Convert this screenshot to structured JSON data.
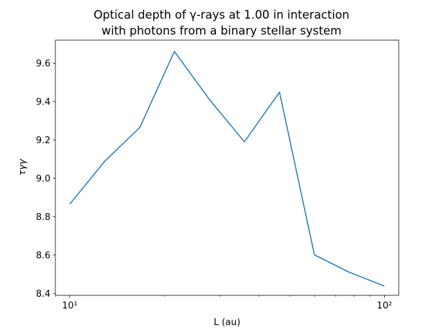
{
  "chart_data": {
    "type": "line",
    "title_lines": [
      "Optical depth of γ-rays at 1.00 in interaction",
      "with photons from a binary stellar system"
    ],
    "xlabel": "L (au)",
    "ylabel": "τγγ",
    "x_scale": "log",
    "xlim": [
      9.0,
      111.0
    ],
    "ylim": [
      8.39,
      9.72
    ],
    "x_ticks": [
      {
        "value": 10,
        "label": "10¹"
      },
      {
        "value": 100,
        "label": "10²"
      }
    ],
    "y_ticks": [
      8.4,
      8.6,
      8.8,
      9.0,
      9.2,
      9.4,
      9.6
    ],
    "y_tick_labels": [
      "8.4",
      "8.6",
      "8.8",
      "9.0",
      "9.2",
      "9.4",
      "9.6"
    ],
    "grid": false,
    "series": [
      {
        "color": "#1f77b4",
        "x": [
          10.0,
          12.9,
          16.7,
          21.5,
          27.8,
          35.9,
          46.4,
          59.9,
          77.4,
          100.0
        ],
        "y": [
          8.865,
          9.088,
          9.265,
          9.661,
          9.41,
          9.19,
          9.449,
          8.601,
          8.51,
          8.438
        ]
      }
    ]
  }
}
